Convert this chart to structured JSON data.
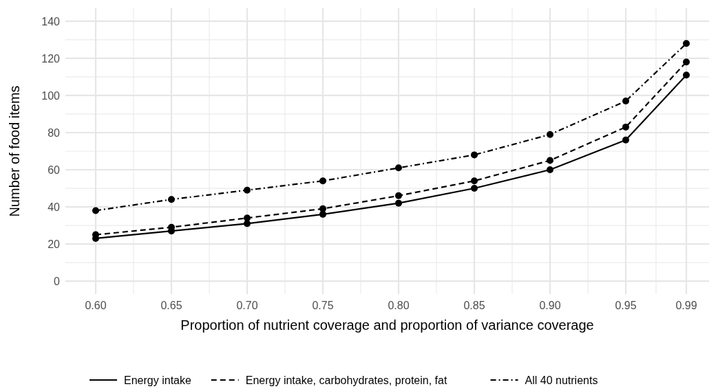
{
  "chart_data": {
    "type": "line",
    "xlabel": "Proportion of nutrient coverage and proportion of variance coverage",
    "ylabel": "Number of food items",
    "x": [
      0.6,
      0.65,
      0.7,
      0.75,
      0.8,
      0.85,
      0.9,
      0.95,
      0.99
    ],
    "xlim": [
      0.58,
      1.005
    ],
    "xticks": [
      {
        "value": 0.6,
        "label": "0.60"
      },
      {
        "value": 0.65,
        "label": "0.65"
      },
      {
        "value": 0.7,
        "label": "0.70"
      },
      {
        "value": 0.75,
        "label": "0.75"
      },
      {
        "value": 0.8,
        "label": "0.80"
      },
      {
        "value": 0.85,
        "label": "0.85"
      },
      {
        "value": 0.9,
        "label": "0.90"
      },
      {
        "value": 0.95,
        "label": "0.95"
      },
      {
        "value": 0.99,
        "label": "0.99"
      }
    ],
    "ylim": [
      -7,
      147
    ],
    "yticks": [
      0,
      20,
      40,
      60,
      80,
      100,
      120,
      140
    ],
    "grid": true,
    "legend": "bottom",
    "marker": "circle",
    "series": [
      {
        "name": "Energy intake",
        "color": "#000000",
        "line_style": "solid",
        "values": [
          23,
          27,
          31,
          36,
          42,
          50,
          60,
          76,
          111
        ]
      },
      {
        "name": "Energy intake, carbohydrates, protein, fat",
        "color": "#000000",
        "line_style": "dashed",
        "values": [
          25,
          29,
          34,
          39,
          46,
          54,
          65,
          83,
          118
        ]
      },
      {
        "name": "All 40 nutrients",
        "color": "#000000",
        "line_style": "dashdot",
        "values": [
          38,
          44,
          49,
          54,
          61,
          68,
          79,
          97,
          128
        ]
      }
    ]
  }
}
